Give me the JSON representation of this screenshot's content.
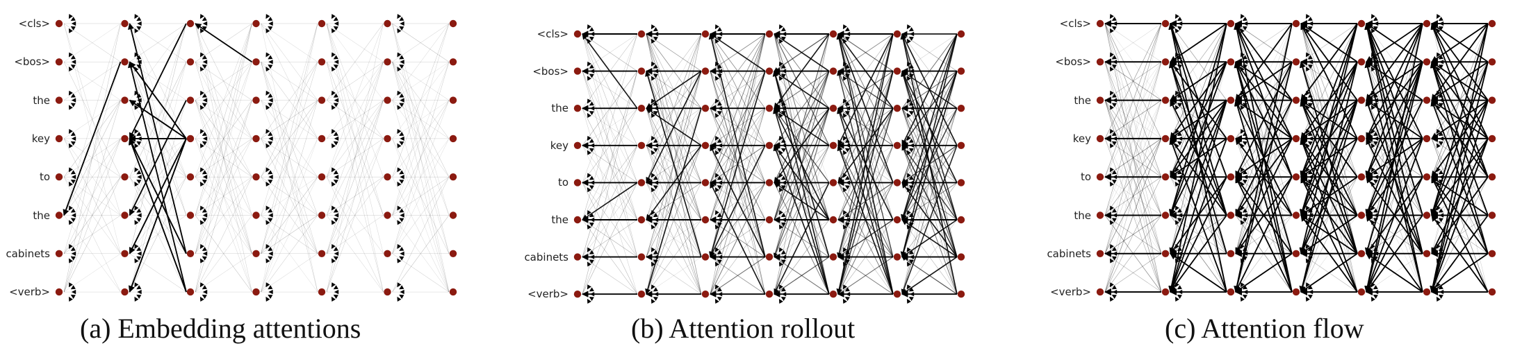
{
  "tokens": [
    "<cls>",
    "<bos>",
    "the",
    "key",
    "to",
    "the",
    "cabinets",
    "<verb>"
  ],
  "layers": 7,
  "colors": {
    "node": "#8b1a10",
    "edge": "#000000",
    "background": "#ffffff"
  },
  "panels": [
    {
      "id": "a",
      "caption": "(a) Embedding attentions",
      "style": "embedding"
    },
    {
      "id": "b",
      "caption": "(b) Attention rollout",
      "style": "rollout"
    },
    {
      "id": "c",
      "caption": "(c) Attention flow",
      "style": "flow"
    }
  ]
}
